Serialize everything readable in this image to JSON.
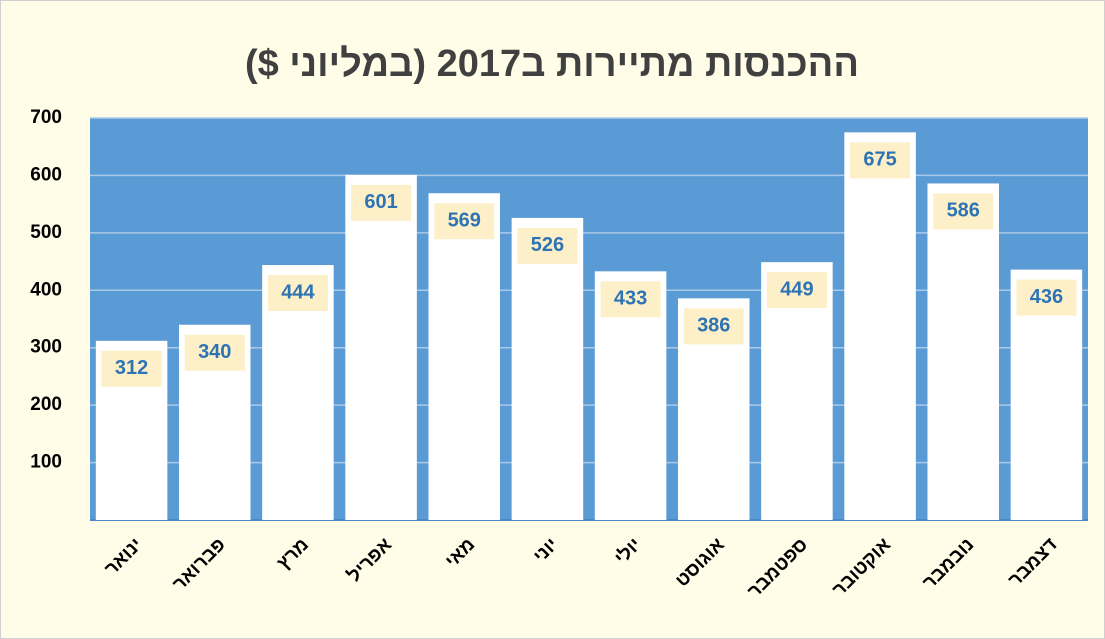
{
  "chart_data": {
    "type": "bar",
    "title": "ההכנסות מתיירות ב2017 (במליוני $)",
    "categories": [
      "ינואר",
      "פברואר",
      "מרץ",
      "אפריל",
      "מאי",
      "יוני",
      "יולי",
      "אוגוסט",
      "ספטמבר",
      "אוקטובר",
      "נובמבר",
      "דצמבר"
    ],
    "values": [
      312,
      340,
      444,
      601,
      569,
      526,
      433,
      386,
      449,
      675,
      586,
      436
    ],
    "color": "#ffffff",
    "background": "#5b9bd5",
    "ylim": [
      0,
      700
    ],
    "yticks": [
      100,
      200,
      300,
      400,
      500,
      600,
      700
    ],
    "grid": true
  }
}
